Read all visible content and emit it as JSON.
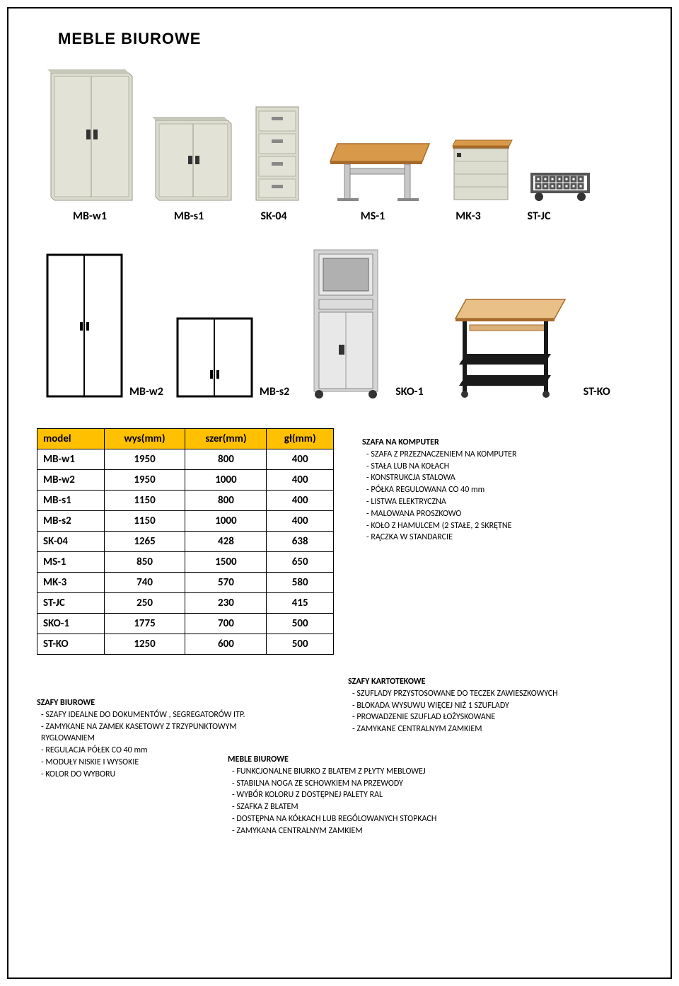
{
  "title": "MEBLE  BIUROWE",
  "row1_labels": [
    "MB-w1",
    "MB-s1",
    "SK-04",
    "MS-1",
    "MK-3",
    "ST-JC"
  ],
  "row2_labels": [
    "MB-w2",
    "MB-s2",
    "SKO-1",
    "ST-KO"
  ],
  "table": {
    "columns": [
      "model",
      "wys(mm)",
      "szer(mm)",
      "gł(mm)"
    ],
    "header_bg": "#ffc000",
    "rows": [
      [
        "MB-w1",
        "1950",
        "800",
        "400"
      ],
      [
        "MB-w2",
        "1950",
        "1000",
        "400"
      ],
      [
        "MB-s1",
        "1150",
        "800",
        "400"
      ],
      [
        "MB-s2",
        "1150",
        "1000",
        "400"
      ],
      [
        "SK-04",
        "1265",
        "428",
        "638"
      ],
      [
        "MS-1",
        "850",
        "1500",
        "650"
      ],
      [
        "MK-3",
        "740",
        "570",
        "580"
      ],
      [
        "ST-JC",
        "250",
        "230",
        "415"
      ],
      [
        "SKO-1",
        "1775",
        "700",
        "500"
      ],
      [
        "ST-KO",
        "1250",
        "600",
        "500"
      ]
    ]
  },
  "desc_computer": {
    "title": "SZAFA NA KOMPUTER",
    "items": [
      "-  SZAFA Z PRZEZNACZENIEM NA KOMPUTER",
      "-  STAŁA LUB NA KOŁACH",
      "-  KONSTRUKCJA  STALOWA",
      "-  PÓŁKA REGULOWANA CO 40 mm",
      "-  LISTWA ELEKTRYCZNA",
      "-  MALOWANA  PROSZKOWO",
      "-  KOŁO Z HAMULCEM (2 STAŁE, 2 SKRĘTNE",
      "-  RĄCZKA W STANDARCIE"
    ]
  },
  "desc_szafy_biurowe": {
    "title": "SZAFY  BIUROWE",
    "items": [
      "-   SZAFY IDEALNE DO DOKUMENTÓW , SEGREGATORÓW  ITP.",
      "-   ZAMYKANE NA ZAMEK KASETOWY Z TRZYPUNKTOWYM",
      "    RYGLOWANIEM",
      "-   REGULACJA  PÓŁEK  CO  40 mm",
      "-   MODUŁY  NISKIE  I  WYSOKIE",
      "-   KOLOR  DO  WYBORU"
    ]
  },
  "desc_kartotekowe": {
    "title": "SZAFY  KARTOTEKOWE",
    "items": [
      " -  SZUFLADY  PRZYSTOSOWANE  DO  TECZEK  ZAWIESZKOWYCH",
      " -  BLOKADA  WYSUWU  WIĘCEJ  NIŻ  1  SZUFLADY",
      " -  PROWADZENIE  SZUFLAD  ŁOŻYSKOWANE",
      " -  ZAMYKANE  CENTRALNYM  ZAMKIEM"
    ]
  },
  "desc_meble": {
    "title": "MEBLE  BIUROWE",
    "items": [
      " -  FUNKCJONALNE  BIURKO  Z  BLATEM  Z  PŁYTY  MEBLOWEJ",
      " -  STABILNA  NOGA  ZE  SCHOWKIEM  NA  PRZEWODY",
      " -  WYBÓR  KOLORU  Z DOSTĘPNEJ  PALETY  RAL",
      " -  SZAFKA  Z  BLATEM",
      " -  DOSTĘPNA   NA  KÓŁKACH LUB REGÓLOWANYCH  STOPKACH",
      " -  ZAMYKANA  CENTRALNYM  ZAMKIEM"
    ]
  },
  "colors": {
    "cabinet_body": "#dcdccf",
    "cabinet_edge": "#b4b4a4",
    "cabinet_dark": "#9a9a8a",
    "wood": "#d89a4a",
    "wood_edge": "#a86a2a",
    "black": "#1a1a1a",
    "gray_metal": "#c8c8c8",
    "shadow": "#888"
  }
}
